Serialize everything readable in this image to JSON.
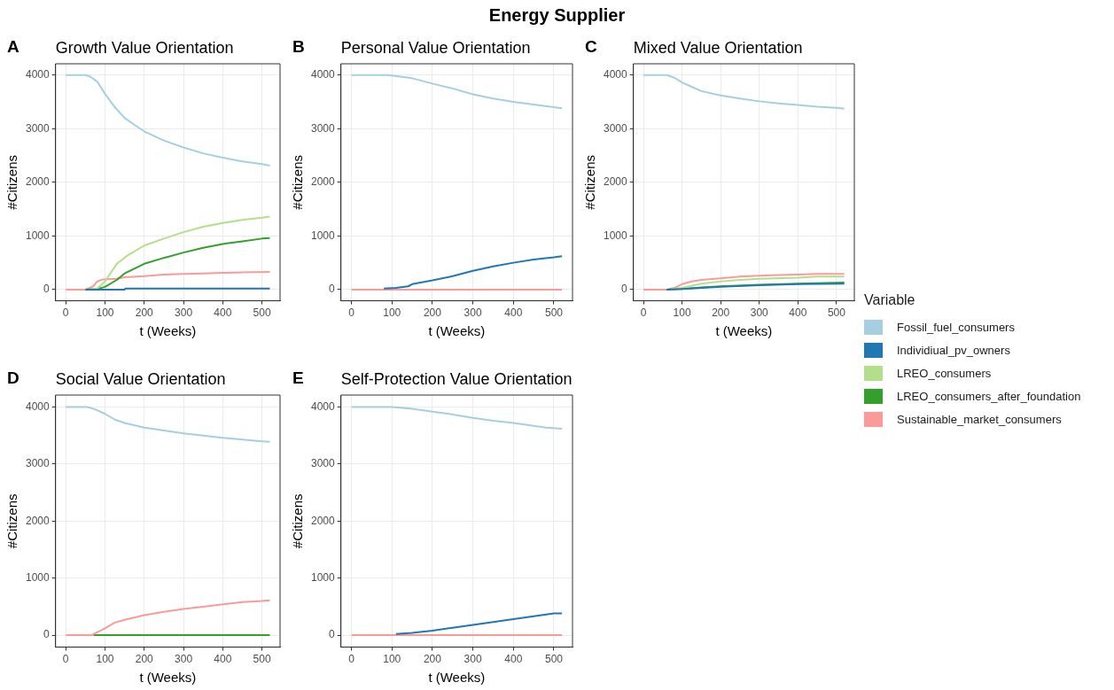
{
  "chart_data": [
    {
      "type": "line",
      "title": "Growth Value Orientation",
      "xlabel": "t (Weeks)",
      "ylabel": "#Citizens",
      "annotations": [
        "Energy Supplier",
        "A"
      ],
      "legend": "right",
      "legend_title": "Variable",
      "xlim": [
        -26,
        546
      ],
      "ylim": [
        -210,
        4210
      ],
      "xticks": [
        0,
        100,
        200,
        300,
        400,
        500
      ],
      "yticks": [
        0,
        1000,
        2000,
        3000,
        4000
      ],
      "grid": true,
      "series": [
        {
          "name": "Fossil_fuel_consumers",
          "color": "#a6cee3",
          "x": [
            0,
            50,
            60,
            80,
            100,
            125,
            150,
            175,
            200,
            250,
            300,
            350,
            400,
            450,
            500,
            520
          ],
          "values": [
            4000,
            4000,
            3980,
            3880,
            3650,
            3400,
            3200,
            3070,
            2950,
            2780,
            2650,
            2540,
            2460,
            2390,
            2340,
            2310
          ]
        },
        {
          "name": "Individiual_pv_owners",
          "color": "#1f78b4",
          "x": [
            50,
            150,
            152,
            520
          ],
          "values": [
            0,
            0,
            20,
            20
          ]
        },
        {
          "name": "LREO_consumers",
          "color": "#b2df8a",
          "x": [
            60,
            80,
            100,
            130,
            160,
            200,
            250,
            300,
            350,
            400,
            450,
            500,
            520
          ],
          "values": [
            0,
            20,
            150,
            480,
            650,
            820,
            950,
            1070,
            1170,
            1240,
            1300,
            1340,
            1360
          ]
        },
        {
          "name": "LREO_consumers_after_foundation",
          "color": "#33a02c",
          "x": [
            50,
            80,
            100,
            130,
            150,
            200,
            250,
            300,
            350,
            400,
            450,
            500,
            520
          ],
          "values": [
            0,
            10,
            50,
            180,
            300,
            480,
            590,
            690,
            780,
            850,
            900,
            950,
            960
          ]
        },
        {
          "name": "Sustainable_market_consumers",
          "color": "#fb9a99",
          "x": [
            0,
            50,
            70,
            80,
            95,
            130,
            150,
            200,
            250,
            300,
            350,
            400,
            450,
            520
          ],
          "values": [
            0,
            0,
            60,
            150,
            190,
            200,
            230,
            250,
            280,
            290,
            300,
            310,
            320,
            330
          ]
        }
      ]
    },
    {
      "type": "line",
      "title": "Personal Value Orientation",
      "xlabel": "t (Weeks)",
      "ylabel": "#Citizens",
      "annotations": [
        "B"
      ],
      "xlim": [
        -26,
        546
      ],
      "ylim": [
        -210,
        4210
      ],
      "xticks": [
        0,
        100,
        200,
        300,
        400,
        500
      ],
      "yticks": [
        0,
        1000,
        2000,
        3000,
        4000
      ],
      "grid": true,
      "series": [
        {
          "name": "Fossil_fuel_consumers",
          "color": "#a6cee3",
          "x": [
            0,
            90,
            100,
            150,
            200,
            250,
            300,
            350,
            400,
            450,
            500,
            520
          ],
          "values": [
            4000,
            4000,
            3990,
            3940,
            3840,
            3750,
            3640,
            3560,
            3500,
            3450,
            3400,
            3380
          ]
        },
        {
          "name": "Individiual_pv_owners",
          "color": "#1f78b4",
          "x": [
            80,
            110,
            140,
            150,
            200,
            250,
            300,
            350,
            400,
            450,
            500,
            520
          ],
          "values": [
            20,
            30,
            60,
            100,
            170,
            250,
            350,
            430,
            500,
            560,
            600,
            620
          ]
        },
        {
          "name": "Sustainable_market_consumers",
          "color": "#fb9a99",
          "x": [
            0,
            520
          ],
          "values": [
            0,
            0
          ]
        }
      ]
    },
    {
      "type": "line",
      "title": "Mixed Value Orientation",
      "xlabel": "t (Weeks)",
      "ylabel": "#Citizens",
      "annotations": [
        "C"
      ],
      "xlim": [
        -26,
        546
      ],
      "ylim": [
        -210,
        4210
      ],
      "xticks": [
        0,
        100,
        200,
        300,
        400,
        500
      ],
      "yticks": [
        0,
        1000,
        2000,
        3000,
        4000
      ],
      "grid": true,
      "series": [
        {
          "name": "Fossil_fuel_consumers",
          "color": "#a6cee3",
          "x": [
            0,
            60,
            80,
            100,
            125,
            150,
            200,
            250,
            300,
            350,
            400,
            450,
            500,
            520
          ],
          "values": [
            4000,
            4000,
            3950,
            3860,
            3780,
            3700,
            3620,
            3560,
            3510,
            3470,
            3440,
            3410,
            3390,
            3370
          ]
        },
        {
          "name": "Individiual_pv_owners",
          "color": "#1f78b4",
          "x": [
            60,
            100,
            200,
            300,
            400,
            520
          ],
          "values": [
            0,
            10,
            50,
            80,
            100,
            110
          ]
        },
        {
          "name": "LREO_consumers",
          "color": "#b2df8a",
          "x": [
            70,
            100,
            150,
            200,
            250,
            300,
            400,
            450,
            520
          ],
          "values": [
            0,
            30,
            110,
            150,
            180,
            200,
            220,
            240,
            240
          ]
        },
        {
          "name": "LREO_consumers_after_foundation",
          "color": "#33a02c",
          "x": [
            60,
            100,
            150,
            200,
            300,
            400,
            520
          ],
          "values": [
            0,
            10,
            40,
            60,
            90,
            110,
            130
          ]
        },
        {
          "name": "Sustainable_market_consumers",
          "color": "#fb9a99",
          "x": [
            0,
            60,
            80,
            100,
            125,
            150,
            200,
            250,
            300,
            350,
            400,
            450,
            520
          ],
          "values": [
            0,
            0,
            30,
            100,
            150,
            180,
            210,
            240,
            260,
            270,
            280,
            290,
            290
          ]
        }
      ]
    },
    {
      "type": "line",
      "title": "Social Value Orientation",
      "xlabel": "t (Weeks)",
      "ylabel": "#Citizens",
      "annotations": [
        "D"
      ],
      "xlim": [
        -26,
        546
      ],
      "ylim": [
        -210,
        4210
      ],
      "xticks": [
        0,
        100,
        200,
        300,
        400,
        500
      ],
      "yticks": [
        0,
        1000,
        2000,
        3000,
        4000
      ],
      "grid": true,
      "series": [
        {
          "name": "Fossil_fuel_consumers",
          "color": "#a6cee3",
          "x": [
            0,
            55,
            75,
            100,
            125,
            150,
            200,
            250,
            300,
            350,
            400,
            450,
            500,
            520
          ],
          "values": [
            4000,
            4000,
            3960,
            3880,
            3780,
            3720,
            3640,
            3590,
            3540,
            3500,
            3460,
            3430,
            3400,
            3390
          ]
        },
        {
          "name": "Sustainable_market_consumers",
          "color": "#fb9a99",
          "x": [
            0,
            65,
            80,
            100,
            125,
            150,
            200,
            250,
            300,
            350,
            400,
            450,
            500,
            520
          ],
          "values": [
            0,
            0,
            50,
            120,
            220,
            270,
            350,
            410,
            460,
            500,
            540,
            580,
            600,
            610
          ]
        },
        {
          "name": "LREO_consumers_after_foundation",
          "color": "#33a02c",
          "x": [
            70,
            520
          ],
          "values": [
            0,
            0
          ]
        }
      ]
    },
    {
      "type": "line",
      "title": "Self-Protection Value Orientation",
      "xlabel": "t (Weeks)",
      "ylabel": "#Citizens",
      "annotations": [
        "E"
      ],
      "xlim": [
        -26,
        546
      ],
      "ylim": [
        -210,
        4210
      ],
      "xticks": [
        0,
        100,
        200,
        300,
        400,
        500
      ],
      "yticks": [
        0,
        1000,
        2000,
        3000,
        4000
      ],
      "grid": true,
      "series": [
        {
          "name": "Fossil_fuel_consumers",
          "color": "#a6cee3",
          "x": [
            0,
            100,
            150,
            200,
            250,
            300,
            350,
            400,
            450,
            480,
            520
          ],
          "values": [
            4000,
            4000,
            3970,
            3920,
            3870,
            3810,
            3760,
            3720,
            3670,
            3640,
            3620
          ]
        },
        {
          "name": "Individiual_pv_owners",
          "color": "#1f78b4",
          "x": [
            110,
            150,
            200,
            250,
            300,
            350,
            400,
            450,
            500,
            520
          ],
          "values": [
            20,
            40,
            80,
            130,
            180,
            230,
            280,
            330,
            380,
            380
          ]
        },
        {
          "name": "Sustainable_market_consumers",
          "color": "#fb9a99",
          "x": [
            0,
            520
          ],
          "values": [
            0,
            0
          ]
        }
      ]
    }
  ]
}
